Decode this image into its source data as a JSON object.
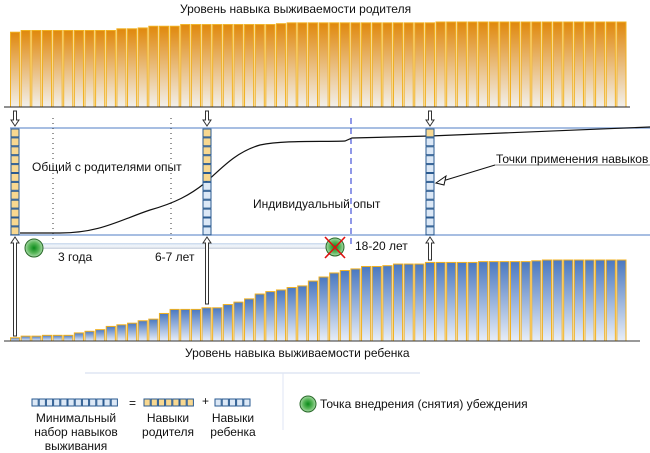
{
  "titles": {
    "parent_level": "Уровень навыка выживаемости родителя",
    "child_level": "Уровень навыка выживаемости ребенка"
  },
  "labels": {
    "shared_experience": "Общий с родителями  опыт",
    "individual_experience": "Индивидуальный опыт",
    "skill_points": "Точки применения навыков",
    "age_3": "3 года",
    "age_6_7": "6-7 лет",
    "age_18_20": "18-20 лет"
  },
  "legend": {
    "min_set": "Минимальный набор навыков выживания",
    "equals": "=",
    "parent_skills": "Навыки родителя",
    "plus": "+",
    "child_skills": "Навыки ребенка",
    "belief_point": "Точка внедрения (снятия) убеждения"
  },
  "colors": {
    "parent": "#e08a10",
    "child": "#4a78c0",
    "outline": "#f0b020",
    "line": "#8aa8d8"
  },
  "chart_data": {
    "type": "bar",
    "series": [
      {
        "name": "Уровень навыка выживаемости родителя",
        "values": [
          88,
          90,
          90,
          90,
          90,
          90,
          90,
          90,
          90,
          90,
          92,
          92,
          93,
          95,
          95,
          95,
          97,
          97,
          97,
          97,
          97,
          97,
          97,
          97,
          97,
          98,
          99,
          99,
          99,
          99,
          99,
          99,
          99,
          99,
          99,
          99,
          99,
          99,
          99,
          99,
          100,
          100,
          100,
          100,
          100,
          100,
          100,
          100,
          100,
          100,
          100,
          100,
          100,
          100,
          100,
          100,
          100,
          100
        ]
      },
      {
        "name": "Уровень навыка выживаемости ребенка",
        "values": [
          4,
          6,
          6,
          7,
          7,
          7,
          10,
          12,
          14,
          18,
          20,
          22,
          25,
          27,
          34,
          39,
          39,
          39,
          41,
          41,
          45,
          48,
          52,
          58,
          61,
          63,
          66,
          68,
          74,
          79,
          84,
          87,
          89,
          92,
          92,
          93,
          95,
          95,
          95,
          97,
          97,
          97,
          97,
          97,
          98,
          98,
          98,
          98,
          98,
          99,
          100,
          100,
          100,
          100,
          100,
          100,
          100,
          100
        ]
      }
    ],
    "ylim": [
      0,
      100
    ]
  }
}
